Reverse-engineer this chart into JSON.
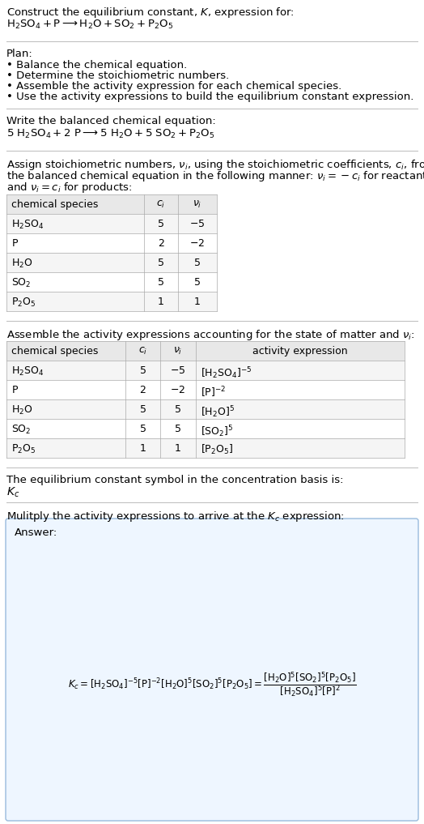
{
  "title_line1": "Construct the equilibrium constant, $K$, expression for:",
  "reaction_unbalanced": "$\\mathrm{H_2SO_4 + P \\longrightarrow H_2O + SO_2 + P_2O_5}$",
  "plan_header": "Plan:",
  "plan_bullets": [
    "• Balance the chemical equation.",
    "• Determine the stoichiometric numbers.",
    "• Assemble the activity expression for each chemical species.",
    "• Use the activity expressions to build the equilibrium constant expression."
  ],
  "balanced_header": "Write the balanced chemical equation:",
  "reaction_balanced": "$\\mathrm{5\\ H_2SO_4 + 2\\ P \\longrightarrow 5\\ H_2O + 5\\ SO_2 + P_2O_5}$",
  "stoich_header_parts": [
    "Assign stoichiometric numbers, $\\nu_i$, using the stoichiometric coefficients, $c_i$, from",
    "the balanced chemical equation in the following manner: $\\nu_i = -c_i$ for reactants",
    "and $\\nu_i = c_i$ for products:"
  ],
  "table1_cols": [
    "chemical species",
    "$c_i$",
    "$\\nu_i$"
  ],
  "table1_rows": [
    [
      "$\\mathrm{H_2SO_4}$",
      "5",
      "$-5$"
    ],
    [
      "$\\mathrm{P}$",
      "2",
      "$-2$"
    ],
    [
      "$\\mathrm{H_2O}$",
      "5",
      "5"
    ],
    [
      "$\\mathrm{SO_2}$",
      "5",
      "5"
    ],
    [
      "$\\mathrm{P_2O_5}$",
      "1",
      "1"
    ]
  ],
  "activity_header": "Assemble the activity expressions accounting for the state of matter and $\\nu_i$:",
  "table2_cols": [
    "chemical species",
    "$c_i$",
    "$\\nu_i$",
    "activity expression"
  ],
  "table2_rows": [
    [
      "$\\mathrm{H_2SO_4}$",
      "5",
      "$-5$",
      "$[\\mathrm{H_2SO_4}]^{-5}$"
    ],
    [
      "$\\mathrm{P}$",
      "2",
      "$-2$",
      "$[\\mathrm{P}]^{-2}$"
    ],
    [
      "$\\mathrm{H_2O}$",
      "5",
      "5",
      "$[\\mathrm{H_2O}]^5$"
    ],
    [
      "$\\mathrm{SO_2}$",
      "5",
      "5",
      "$[\\mathrm{SO_2}]^5$"
    ],
    [
      "$\\mathrm{P_2O_5}$",
      "1",
      "1",
      "$[\\mathrm{P_2O_5}]$"
    ]
  ],
  "kc_header": "The equilibrium constant symbol in the concentration basis is:",
  "kc_symbol": "$K_c$",
  "multiply_header": "Mulitply the activity expressions to arrive at the $K_c$ expression:",
  "answer_label": "Answer:",
  "bg_color": "#ffffff",
  "table_header_bg": "#e8e8e8",
  "table_row_bg": "#f5f5f5",
  "table_alt_bg": "#ffffff",
  "answer_box_bg": "#eef6ff",
  "answer_box_border": "#99bbdd",
  "divider_color": "#bbbbbb",
  "font_size": 9.5,
  "small_font": 9.0
}
